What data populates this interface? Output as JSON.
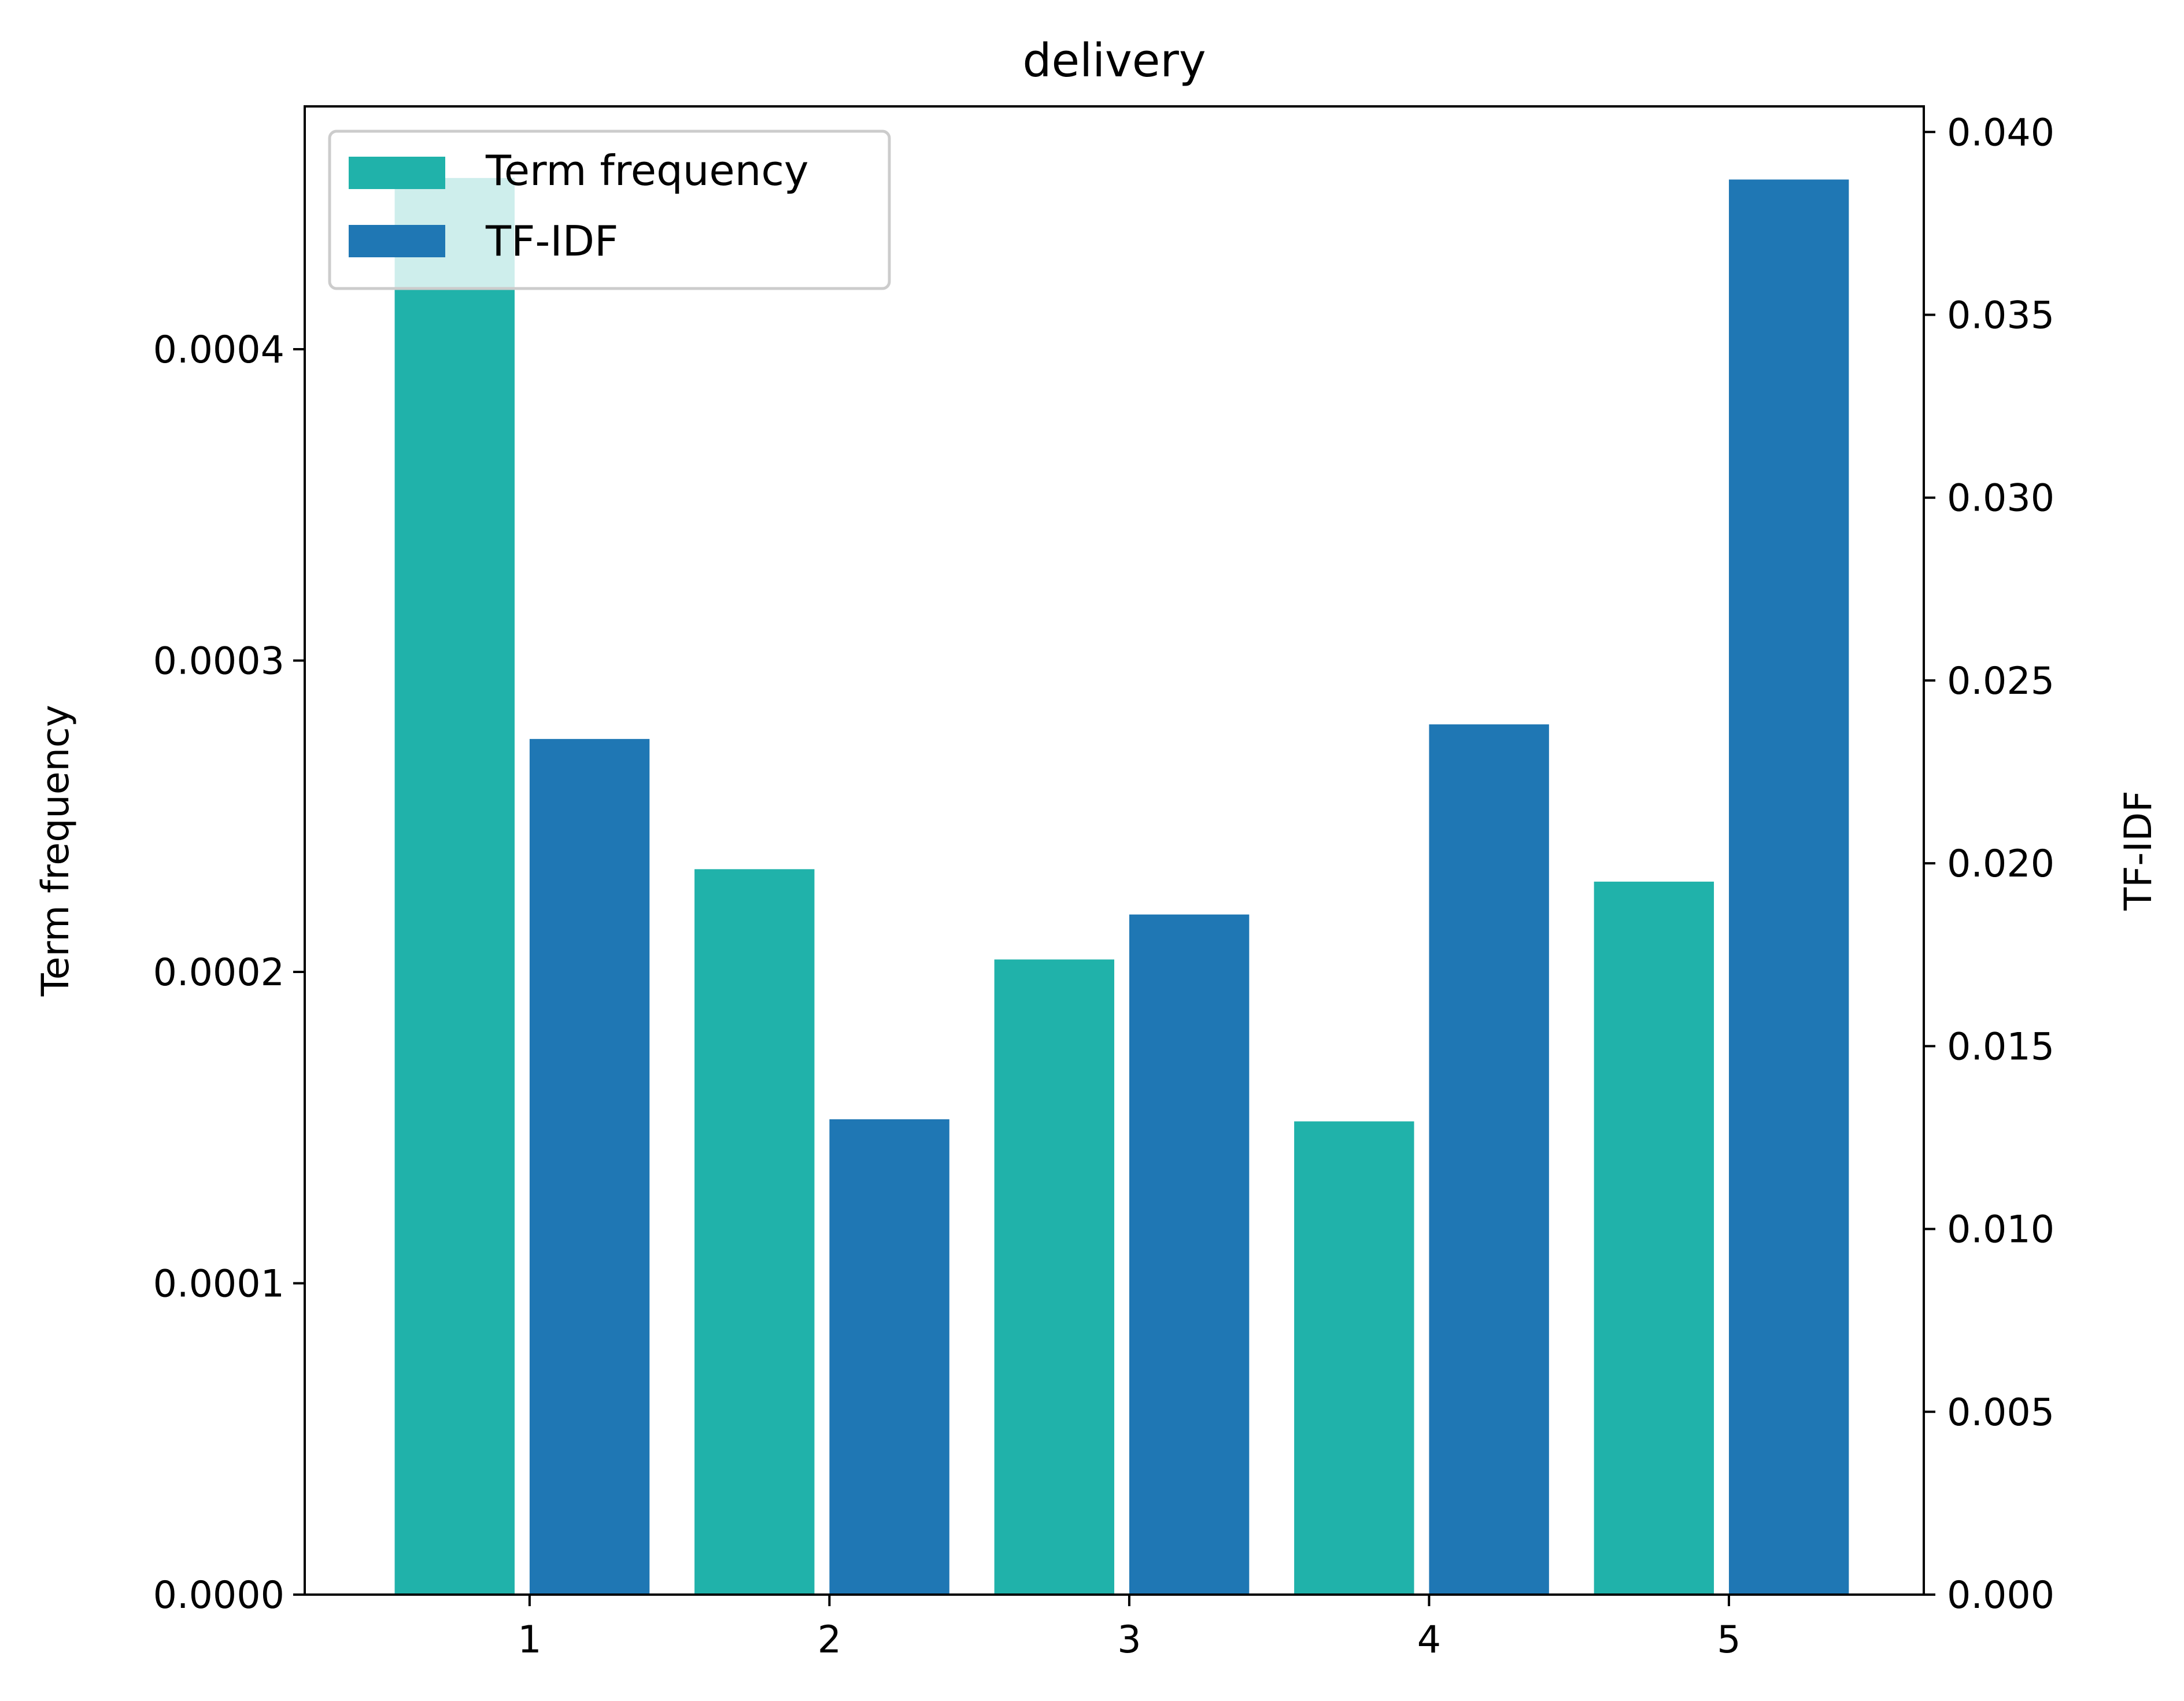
{
  "chart_data": {
    "type": "bar",
    "title": "delivery",
    "categories": [
      "1",
      "2",
      "3",
      "4",
      "5"
    ],
    "x_ticks": [
      1,
      2,
      3,
      4,
      5
    ],
    "xlim": [
      0.25,
      5.65
    ],
    "series": [
      {
        "name": "Term frequency",
        "axis": "left",
        "x": [
          0.75,
          1.75,
          2.75,
          3.75,
          4.75
        ],
        "values": [
          0.000455,
          0.000233,
          0.000204,
          0.000152,
          0.000229
        ],
        "color": "#20b2aa"
      },
      {
        "name": "TF-IDF",
        "axis": "right",
        "x": [
          1.2,
          2.2,
          3.2,
          4.2,
          5.2
        ],
        "values": [
          0.0234,
          0.013,
          0.0186,
          0.0238,
          0.0387
        ],
        "color": "#1f77b4"
      }
    ],
    "y_left": {
      "label": "Term frequency",
      "ylim": [
        0,
        0.000478
      ],
      "ticks": [
        "0.0000",
        "0.0001",
        "0.0002",
        "0.0003",
        "0.0004"
      ],
      "tick_values": [
        0,
        0.0001,
        0.0002,
        0.0003,
        0.0004
      ]
    },
    "y_right": {
      "label": "TF-IDF",
      "ylim": [
        0,
        0.0407
      ],
      "ticks": [
        "0.000",
        "0.005",
        "0.010",
        "0.015",
        "0.020",
        "0.025",
        "0.030",
        "0.035",
        "0.040"
      ],
      "tick_values": [
        0,
        0.005,
        0.01,
        0.015,
        0.02,
        0.025,
        0.03,
        0.035,
        0.04
      ]
    },
    "legend": {
      "placement": "top-left",
      "entries": [
        "Term frequency",
        "TF-IDF"
      ]
    },
    "grid": false
  }
}
